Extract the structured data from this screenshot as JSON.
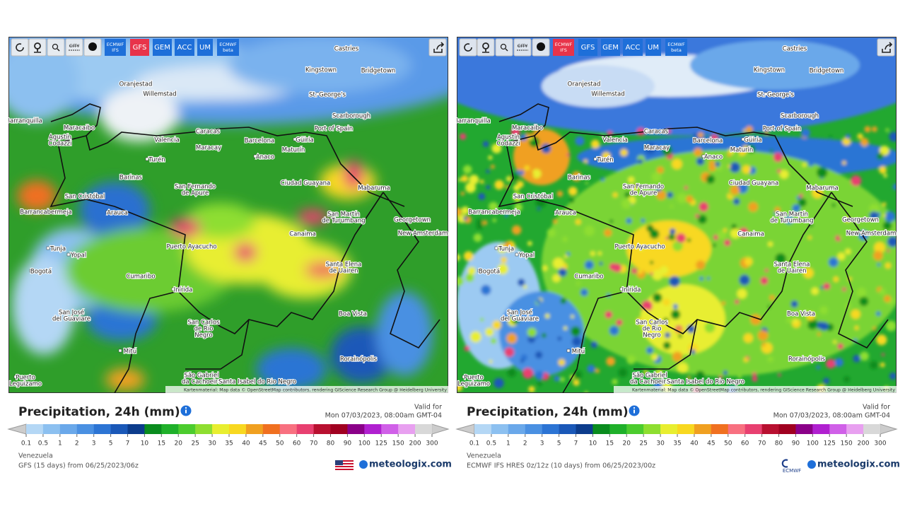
{
  "panels": [
    {
      "toolbar": {
        "city": "CITY",
        "models": [
          {
            "label": [
              "ECMWF",
              "IFS"
            ],
            "active": false
          },
          {
            "label": [
              "GFS"
            ],
            "active": true
          },
          {
            "label": [
              "GEM"
            ],
            "active": false
          },
          {
            "label": [
              "ACC"
            ],
            "active": false
          },
          {
            "label": [
              "UM"
            ],
            "active": false
          },
          {
            "label": [
              "ECMWF",
              "beta"
            ],
            "active": false
          }
        ]
      },
      "attribution": "Kartenmaterial: Map data © OpenStreetMap contributors, rendering GIScience Research Group @ Heidelberg University",
      "title": "Precipitation, 24h (mm)",
      "valid_label": "Valid for",
      "valid_time": "Mon 07/03/2023, 08:00am GMT-04",
      "region": "Venezuela",
      "model_run": "GFS (15 days) from 06/25/2023/06z",
      "brand": "meteologix.com"
    },
    {
      "toolbar": {
        "city": "CITY",
        "models": [
          {
            "label": [
              "ECMWF",
              "IFS"
            ],
            "active": true
          },
          {
            "label": [
              "GFS"
            ],
            "active": false
          },
          {
            "label": [
              "GEM"
            ],
            "active": false
          },
          {
            "label": [
              "ACC"
            ],
            "active": false
          },
          {
            "label": [
              "UM"
            ],
            "active": false
          },
          {
            "label": [
              "ECMWF",
              "beta"
            ],
            "active": false
          }
        ]
      },
      "attribution": "Kartenmaterial: Map data © OpenStreetMap contributors, rendering GIScience Research Group @ Heidelberg University",
      "title": "Precipitation, 24h (mm)",
      "valid_label": "Valid for",
      "valid_time": "Mon 07/03/2023, 08:00am GMT-04",
      "region": "Venezuela",
      "model_run": "ECMWF IFS HRES 0z/12z (10 days) from 06/25/2023/00z",
      "brand": "meteologix.com",
      "badge": "ECMWF"
    }
  ],
  "map_labels": [
    [
      "Castries"
    ],
    [
      "Kingstown"
    ],
    [
      "Bridgetown"
    ],
    [
      "St. George's"
    ],
    [
      "Oranjestad"
    ],
    [
      "Willemstad"
    ],
    [
      "Scarborough"
    ],
    [
      "Barranquilla"
    ],
    [
      "Maracaibo"
    ],
    [
      "Caracas"
    ],
    [
      "Port of Spain"
    ],
    [
      "Barcelona"
    ],
    [
      "Güiria"
    ],
    [
      "Agustín",
      "Codazzi"
    ],
    [
      "Valencia"
    ],
    [
      "Maracay"
    ],
    [
      "Maturín"
    ],
    [
      "Anaco"
    ],
    [
      "Turén"
    ],
    [
      "Barinas"
    ],
    [
      "Ciudad Guayana"
    ],
    [
      "Mabaruma"
    ],
    [
      "San Fernando",
      "de Apure"
    ],
    [
      "San Cristóbal"
    ],
    [
      "Arauca"
    ],
    [
      "San Martín",
      "de Turumbang"
    ],
    [
      "Georgetown"
    ],
    [
      "Barrancabermeja"
    ],
    [
      "Canaima"
    ],
    [
      "New Amsterdam"
    ],
    [
      "Puerto Ayacucho"
    ],
    [
      "Tunja"
    ],
    [
      "Yopal"
    ],
    [
      "Bogotá"
    ],
    [
      "Santa Elena",
      "de Uairen"
    ],
    [
      "Cumaribo"
    ],
    [
      "Inírida"
    ],
    [
      "Boa Vista"
    ],
    [
      "San José",
      "del Guaviare"
    ],
    [
      "San Carlos",
      "de Rio",
      "Negro"
    ],
    [
      "Mitú"
    ],
    [
      "Rorainópolis"
    ],
    [
      "São Gabriel",
      "da Cachoeira"
    ],
    [
      "Santa Isabel do Rio Negro"
    ],
    [
      "Puerto",
      "Leguizamo"
    ]
  ],
  "legend": {
    "ticks": [
      0.1,
      0.5,
      1,
      2,
      3,
      5,
      7,
      10,
      15,
      20,
      25,
      30,
      35,
      40,
      45,
      50,
      60,
      70,
      80,
      90,
      100,
      125,
      150,
      200,
      300
    ],
    "colors": [
      "#b4d7f5",
      "#8cc0f0",
      "#6aa8ea",
      "#4a90e2",
      "#2c74d4",
      "#1a58b8",
      "#0c3c8c",
      "#0a8c1e",
      "#1fb02a",
      "#4ccc2e",
      "#8ede30",
      "#e8ee30",
      "#f8d820",
      "#f0a020",
      "#f07020",
      "#f87080",
      "#e84070",
      "#b81030",
      "#a00020",
      "#8a0088",
      "#b020d0",
      "#d060e8",
      "#e8a0f0",
      "#d8d8d8"
    ]
  }
}
